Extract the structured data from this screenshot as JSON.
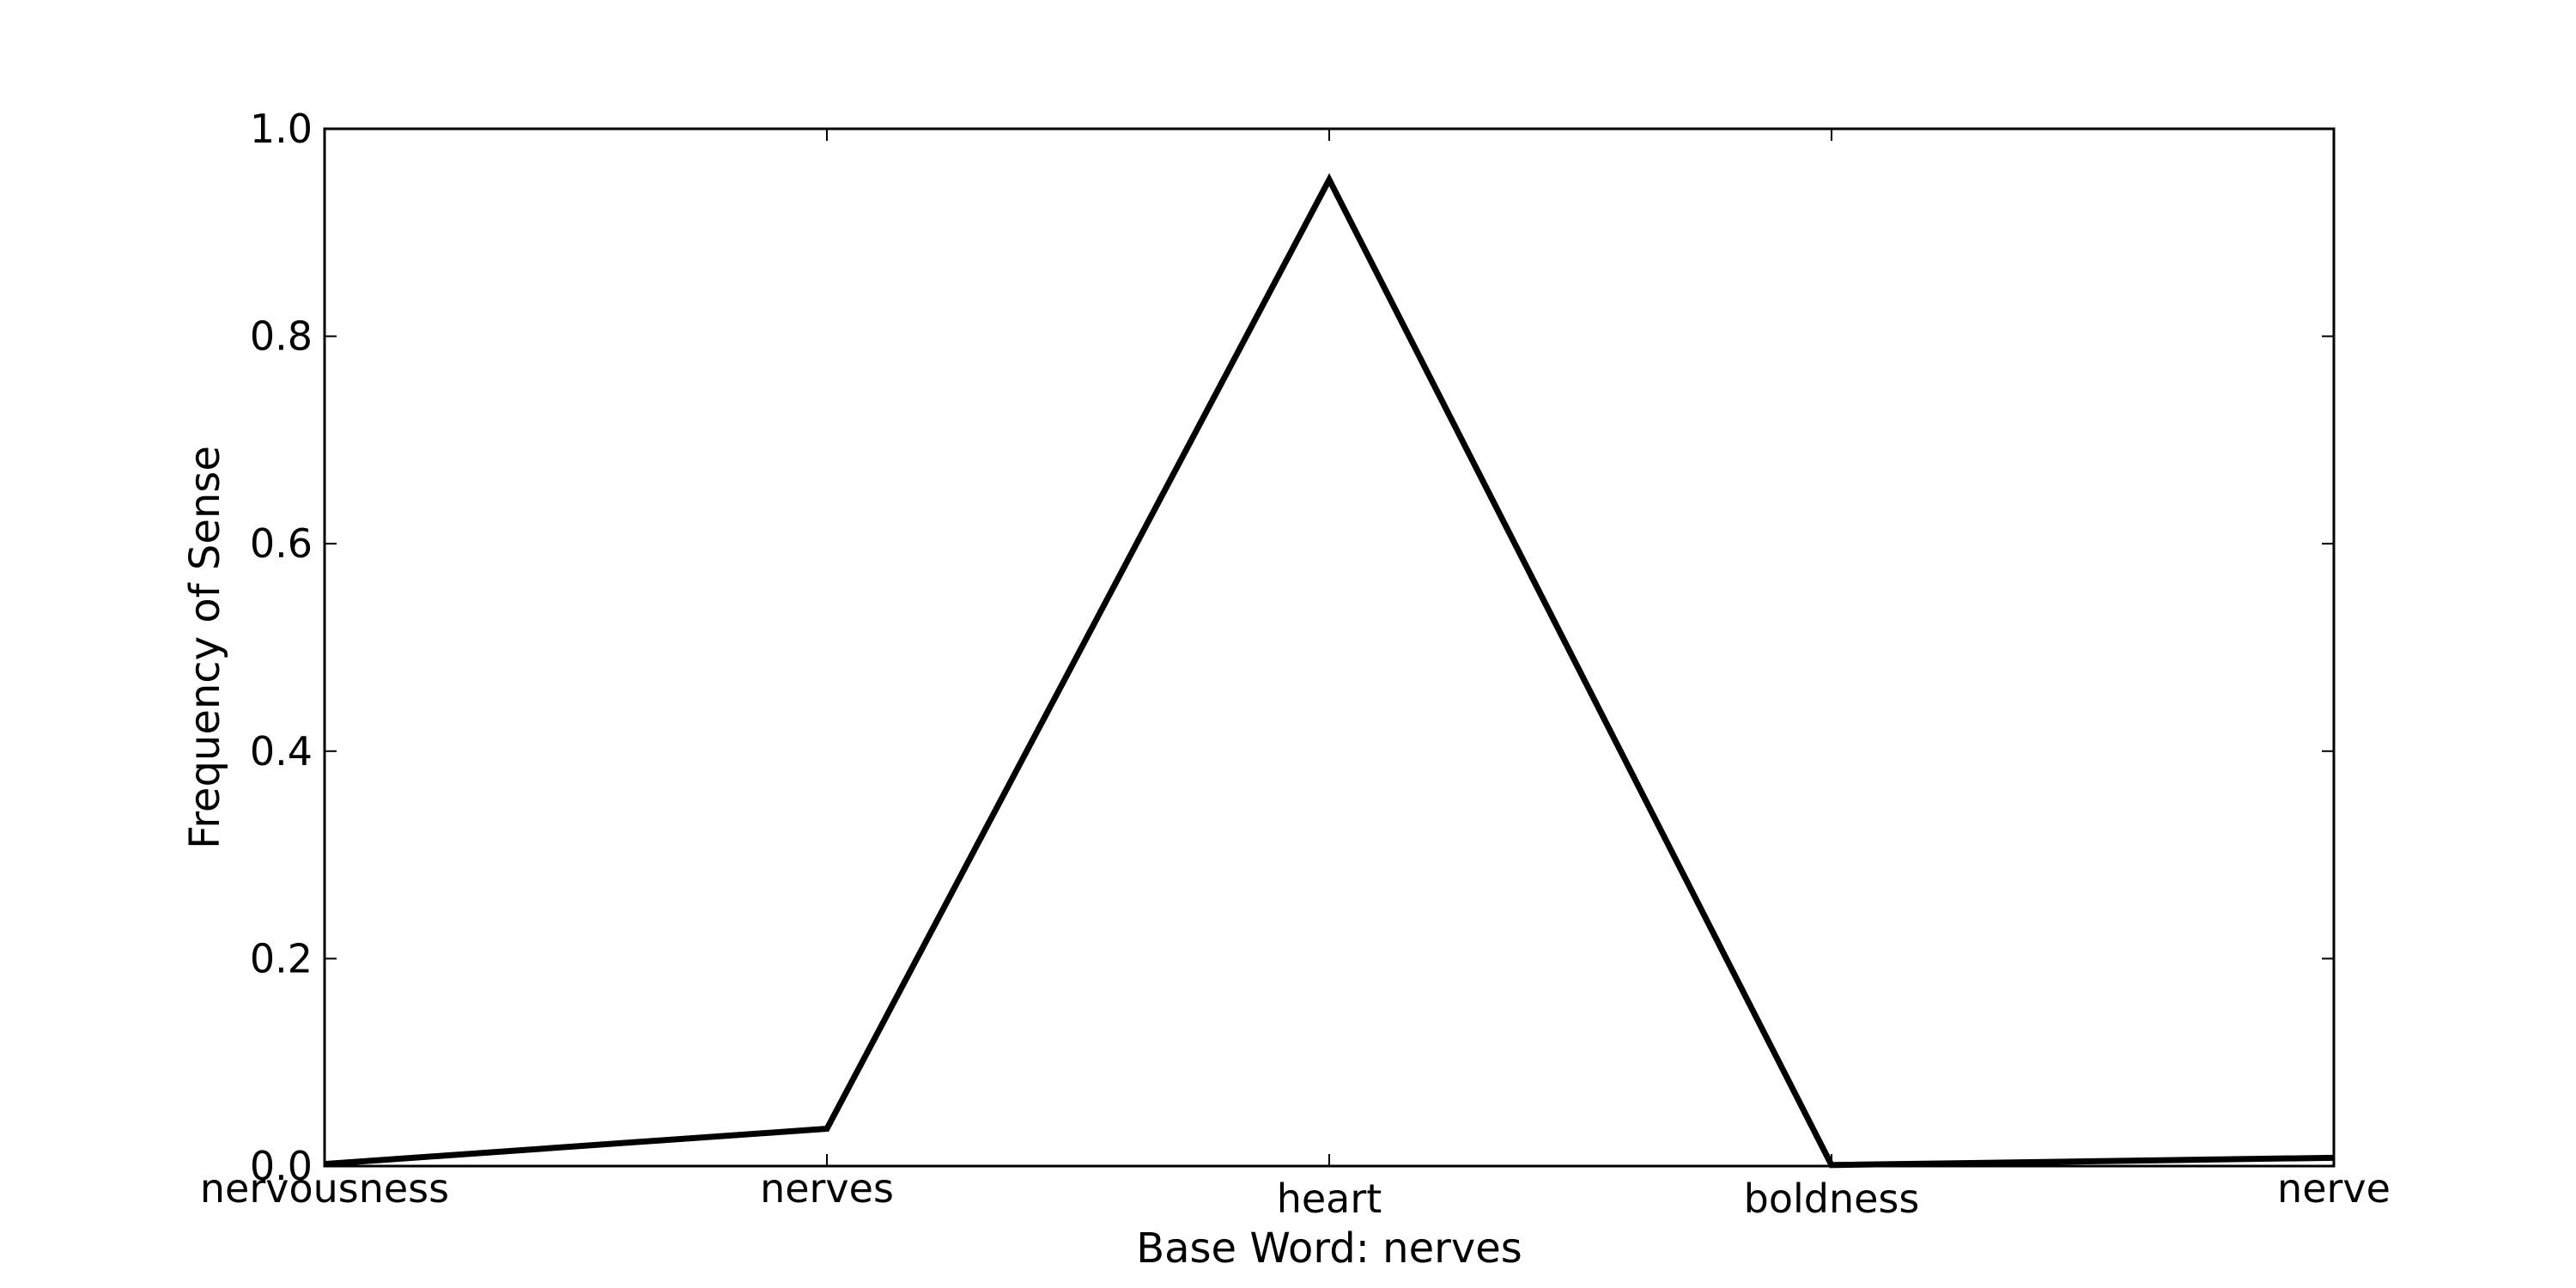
{
  "chart_data": {
    "type": "line",
    "title": "",
    "xlabel": "Base Word: nerves",
    "ylabel": "Frequency of Sense",
    "categories": [
      "nervousness",
      "nerves",
      "heart",
      "boldness",
      "nerve"
    ],
    "series": [
      {
        "values": [
          0.002,
          0.036,
          0.951,
          0.001,
          0.008
        ]
      }
    ],
    "ylim": [
      0,
      1
    ],
    "yticks": [
      0.0,
      0.2,
      0.4,
      0.6,
      0.8,
      1.0
    ],
    "ytick_labels": [
      "0.0",
      "0.2",
      "0.4",
      "0.6",
      "0.8",
      "1.0"
    ],
    "grid": false,
    "line_color": "#000000"
  }
}
